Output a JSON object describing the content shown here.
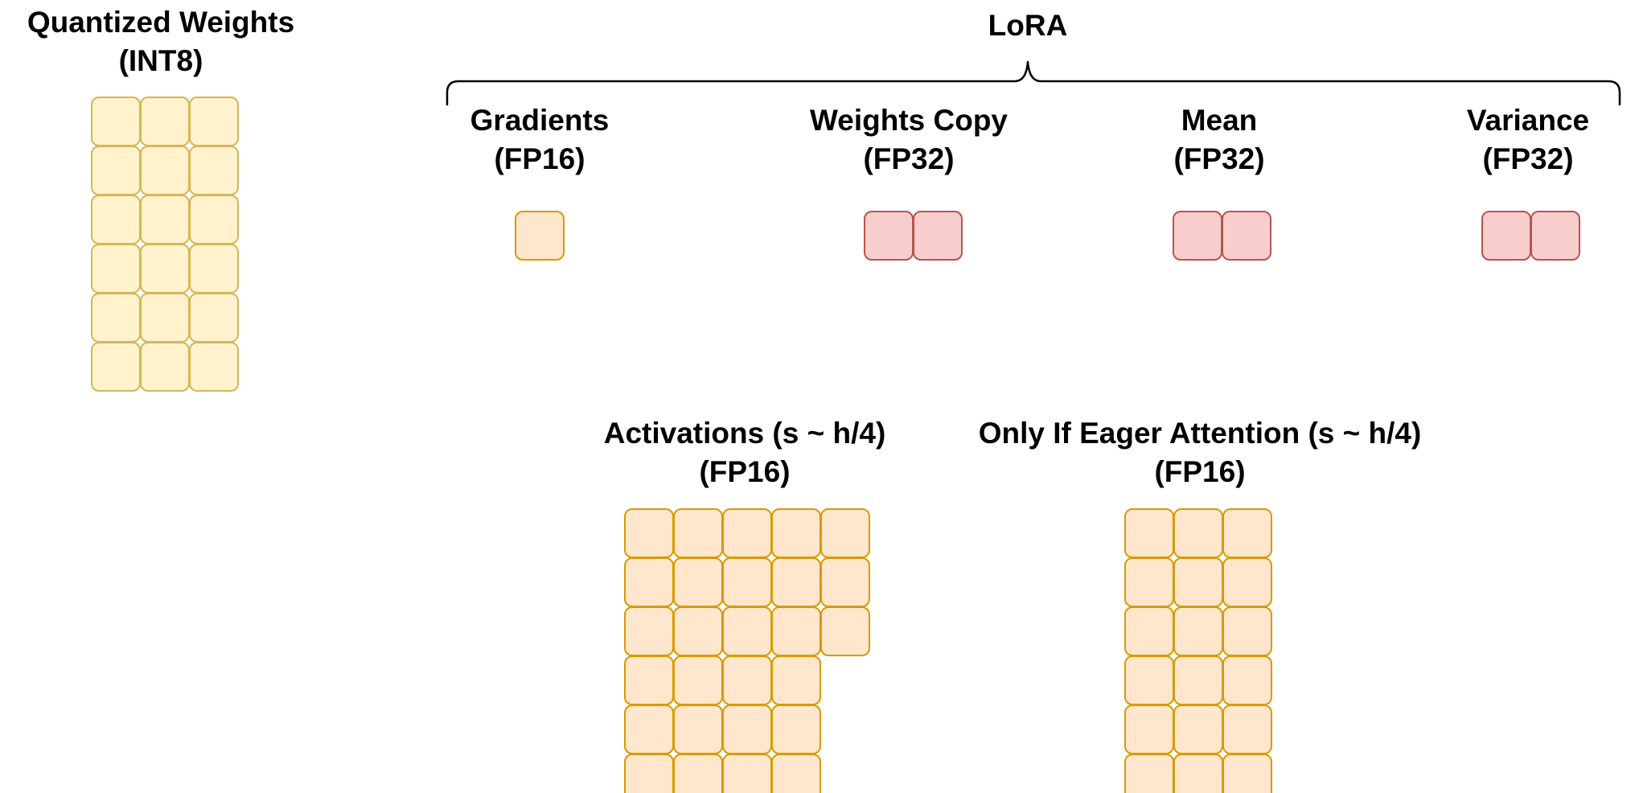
{
  "colors": {
    "yellow_fill": "#fff2cc",
    "yellow_stroke": "#d6b656",
    "orange_fill": "#ffe6cc",
    "orange_stroke": "#d79b00",
    "red_fill": "#f8cecc",
    "red_stroke": "#b85450",
    "line": "#000000"
  },
  "lora": {
    "title": "LoRA"
  },
  "groups": [
    {
      "id": "quantized-weights",
      "title": "Quantized Weights",
      "subtitle": "(INT8)",
      "color": "yellow",
      "rows": [
        3,
        3,
        3,
        3,
        3,
        3
      ]
    },
    {
      "id": "gradients",
      "title": "Gradients",
      "subtitle": "(FP16)",
      "color": "orange",
      "rows": [
        1
      ]
    },
    {
      "id": "weights-copy",
      "title": "Weights Copy",
      "subtitle": "(FP32)",
      "color": "red",
      "rows": [
        2
      ]
    },
    {
      "id": "mean",
      "title": "Mean",
      "subtitle": "(FP32)",
      "color": "red",
      "rows": [
        2
      ]
    },
    {
      "id": "variance",
      "title": "Variance",
      "subtitle": "(FP32)",
      "color": "red",
      "rows": [
        2
      ]
    },
    {
      "id": "activations",
      "title": "Activations (s ~ h/4)",
      "subtitle": "(FP16)",
      "color": "orange",
      "rows": [
        5,
        5,
        5,
        4,
        4,
        4
      ]
    },
    {
      "id": "eager-attention",
      "title": "Only If Eager Attention (s ~ h/4)",
      "subtitle": "(FP16)",
      "color": "orange",
      "rows": [
        3,
        3,
        3,
        3,
        3,
        3
      ]
    }
  ]
}
